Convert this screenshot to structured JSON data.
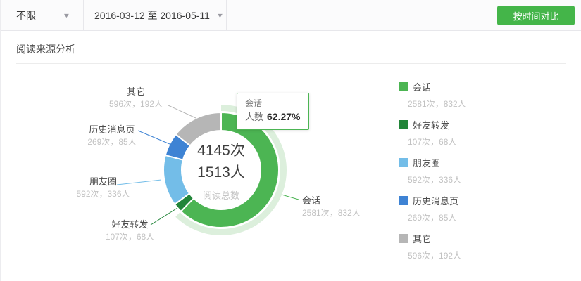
{
  "topbar": {
    "filter_label": "不限",
    "date_range": "2016-03-12 至 2016-05-11",
    "compare_button": "按时间对比"
  },
  "icons": {
    "chevron_down": "▼"
  },
  "section": {
    "title": "阅读来源分析"
  },
  "center": {
    "times": "4145次",
    "people": "1513人",
    "caption": "阅读总数"
  },
  "tooltip": {
    "series": "会话",
    "metric": "人数",
    "percent": "62.27%"
  },
  "accent_color": "#44b549",
  "chart_data": {
    "type": "pie",
    "title": "阅读来源分析",
    "total_times": 4145,
    "total_people": 1513,
    "center_label": "阅读总数",
    "highlighted": "会话",
    "highlight_halo_color": "#dcefdc",
    "legend_position": "right",
    "series": [
      {
        "name": "会话",
        "times": 2581,
        "people": 832,
        "percent": 62.27,
        "color": "#4cb553",
        "value_text": "2581次，832人"
      },
      {
        "name": "好友转发",
        "times": 107,
        "people": 68,
        "percent": 2.58,
        "color": "#228539",
        "value_text": "107次，68人"
      },
      {
        "name": "朋友圈",
        "times": 592,
        "people": 336,
        "percent": 14.28,
        "color": "#73bde8",
        "value_text": "592次，336人"
      },
      {
        "name": "历史消息页",
        "times": 269,
        "people": 85,
        "percent": 6.49,
        "color": "#3e83d4",
        "value_text": "269次，85人"
      },
      {
        "name": "其它",
        "times": 596,
        "people": 192,
        "percent": 14.38,
        "color": "#b6b6b6",
        "value_text": "596次，192人"
      }
    ]
  }
}
